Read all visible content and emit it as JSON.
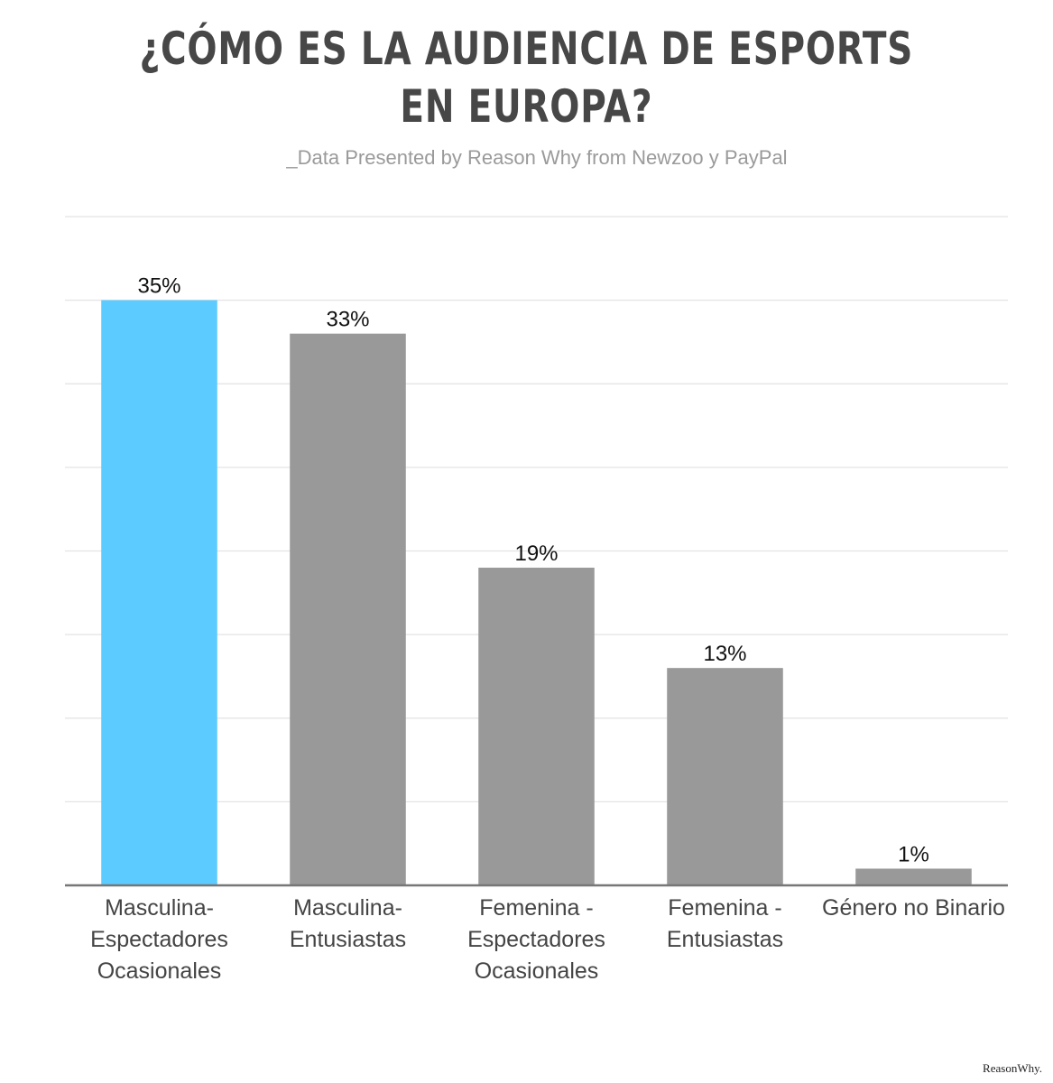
{
  "chart_data": {
    "type": "bar",
    "title_lines": [
      "¿CÓMO ES LA AUDIENCIA DE ESPORTS",
      "EN EUROPA?"
    ],
    "subtitle": "_Data Presented by Reason Why from Newzoo y PayPal",
    "categories": [
      [
        "Masculina-",
        "Espectadores",
        "Ocasionales"
      ],
      [
        "Masculina-",
        "Entusiastas"
      ],
      [
        "Femenina -",
        "Espectadores",
        "Ocasionales"
      ],
      [
        "Femenina -",
        "Entusiastas"
      ],
      [
        "Género no Binario"
      ]
    ],
    "values": [
      35,
      33,
      19,
      13,
      1
    ],
    "value_labels": [
      "35%",
      "33%",
      "19%",
      "13%",
      "1%"
    ],
    "highlight_index": 0,
    "ylim": [
      0,
      40
    ],
    "grid": true,
    "colors": {
      "highlight": "#5ccbff",
      "bar": "#999999",
      "grid": "#e3e3e3",
      "axis": "#777777"
    }
  },
  "footer": {
    "brand": "ReasonWhy."
  }
}
